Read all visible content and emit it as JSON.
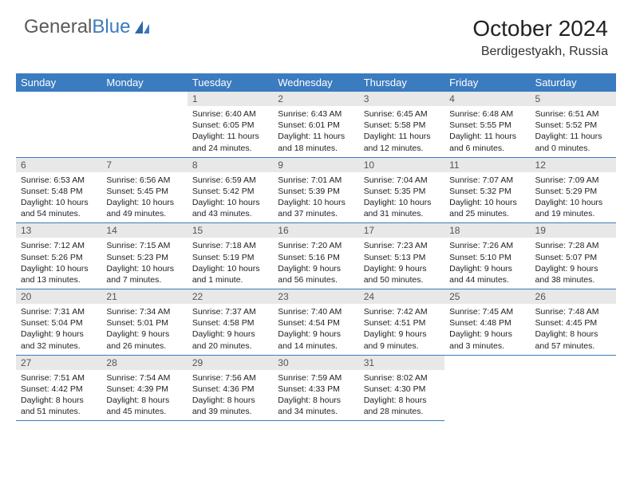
{
  "logo": {
    "text1": "General",
    "text2": "Blue"
  },
  "title": "October 2024",
  "location": "Berdigestyakh, Russia",
  "colors": {
    "header_bg": "#3b7bbf",
    "header_text": "#ffffff",
    "daynum_bg": "#e8e8e8",
    "daynum_text": "#555555",
    "body_text": "#222222",
    "border": "#3b7bbf",
    "logo_gray": "#5a5a5a",
    "logo_blue": "#3b7bbf"
  },
  "weekdays": [
    "Sunday",
    "Monday",
    "Tuesday",
    "Wednesday",
    "Thursday",
    "Friday",
    "Saturday"
  ],
  "weeks": [
    [
      null,
      null,
      {
        "n": "1",
        "sr": "6:40 AM",
        "ss": "6:05 PM",
        "dl": "11 hours and 24 minutes."
      },
      {
        "n": "2",
        "sr": "6:43 AM",
        "ss": "6:01 PM",
        "dl": "11 hours and 18 minutes."
      },
      {
        "n": "3",
        "sr": "6:45 AM",
        "ss": "5:58 PM",
        "dl": "11 hours and 12 minutes."
      },
      {
        "n": "4",
        "sr": "6:48 AM",
        "ss": "5:55 PM",
        "dl": "11 hours and 6 minutes."
      },
      {
        "n": "5",
        "sr": "6:51 AM",
        "ss": "5:52 PM",
        "dl": "11 hours and 0 minutes."
      }
    ],
    [
      {
        "n": "6",
        "sr": "6:53 AM",
        "ss": "5:48 PM",
        "dl": "10 hours and 54 minutes."
      },
      {
        "n": "7",
        "sr": "6:56 AM",
        "ss": "5:45 PM",
        "dl": "10 hours and 49 minutes."
      },
      {
        "n": "8",
        "sr": "6:59 AM",
        "ss": "5:42 PM",
        "dl": "10 hours and 43 minutes."
      },
      {
        "n": "9",
        "sr": "7:01 AM",
        "ss": "5:39 PM",
        "dl": "10 hours and 37 minutes."
      },
      {
        "n": "10",
        "sr": "7:04 AM",
        "ss": "5:35 PM",
        "dl": "10 hours and 31 minutes."
      },
      {
        "n": "11",
        "sr": "7:07 AM",
        "ss": "5:32 PM",
        "dl": "10 hours and 25 minutes."
      },
      {
        "n": "12",
        "sr": "7:09 AM",
        "ss": "5:29 PM",
        "dl": "10 hours and 19 minutes."
      }
    ],
    [
      {
        "n": "13",
        "sr": "7:12 AM",
        "ss": "5:26 PM",
        "dl": "10 hours and 13 minutes."
      },
      {
        "n": "14",
        "sr": "7:15 AM",
        "ss": "5:23 PM",
        "dl": "10 hours and 7 minutes."
      },
      {
        "n": "15",
        "sr": "7:18 AM",
        "ss": "5:19 PM",
        "dl": "10 hours and 1 minute."
      },
      {
        "n": "16",
        "sr": "7:20 AM",
        "ss": "5:16 PM",
        "dl": "9 hours and 56 minutes."
      },
      {
        "n": "17",
        "sr": "7:23 AM",
        "ss": "5:13 PM",
        "dl": "9 hours and 50 minutes."
      },
      {
        "n": "18",
        "sr": "7:26 AM",
        "ss": "5:10 PM",
        "dl": "9 hours and 44 minutes."
      },
      {
        "n": "19",
        "sr": "7:28 AM",
        "ss": "5:07 PM",
        "dl": "9 hours and 38 minutes."
      }
    ],
    [
      {
        "n": "20",
        "sr": "7:31 AM",
        "ss": "5:04 PM",
        "dl": "9 hours and 32 minutes."
      },
      {
        "n": "21",
        "sr": "7:34 AM",
        "ss": "5:01 PM",
        "dl": "9 hours and 26 minutes."
      },
      {
        "n": "22",
        "sr": "7:37 AM",
        "ss": "4:58 PM",
        "dl": "9 hours and 20 minutes."
      },
      {
        "n": "23",
        "sr": "7:40 AM",
        "ss": "4:54 PM",
        "dl": "9 hours and 14 minutes."
      },
      {
        "n": "24",
        "sr": "7:42 AM",
        "ss": "4:51 PM",
        "dl": "9 hours and 9 minutes."
      },
      {
        "n": "25",
        "sr": "7:45 AM",
        "ss": "4:48 PM",
        "dl": "9 hours and 3 minutes."
      },
      {
        "n": "26",
        "sr": "7:48 AM",
        "ss": "4:45 PM",
        "dl": "8 hours and 57 minutes."
      }
    ],
    [
      {
        "n": "27",
        "sr": "7:51 AM",
        "ss": "4:42 PM",
        "dl": "8 hours and 51 minutes."
      },
      {
        "n": "28",
        "sr": "7:54 AM",
        "ss": "4:39 PM",
        "dl": "8 hours and 45 minutes."
      },
      {
        "n": "29",
        "sr": "7:56 AM",
        "ss": "4:36 PM",
        "dl": "8 hours and 39 minutes."
      },
      {
        "n": "30",
        "sr": "7:59 AM",
        "ss": "4:33 PM",
        "dl": "8 hours and 34 minutes."
      },
      {
        "n": "31",
        "sr": "8:02 AM",
        "ss": "4:30 PM",
        "dl": "8 hours and 28 minutes."
      },
      null,
      null
    ]
  ],
  "labels": {
    "sunrise": "Sunrise:",
    "sunset": "Sunset:",
    "daylight": "Daylight:"
  }
}
